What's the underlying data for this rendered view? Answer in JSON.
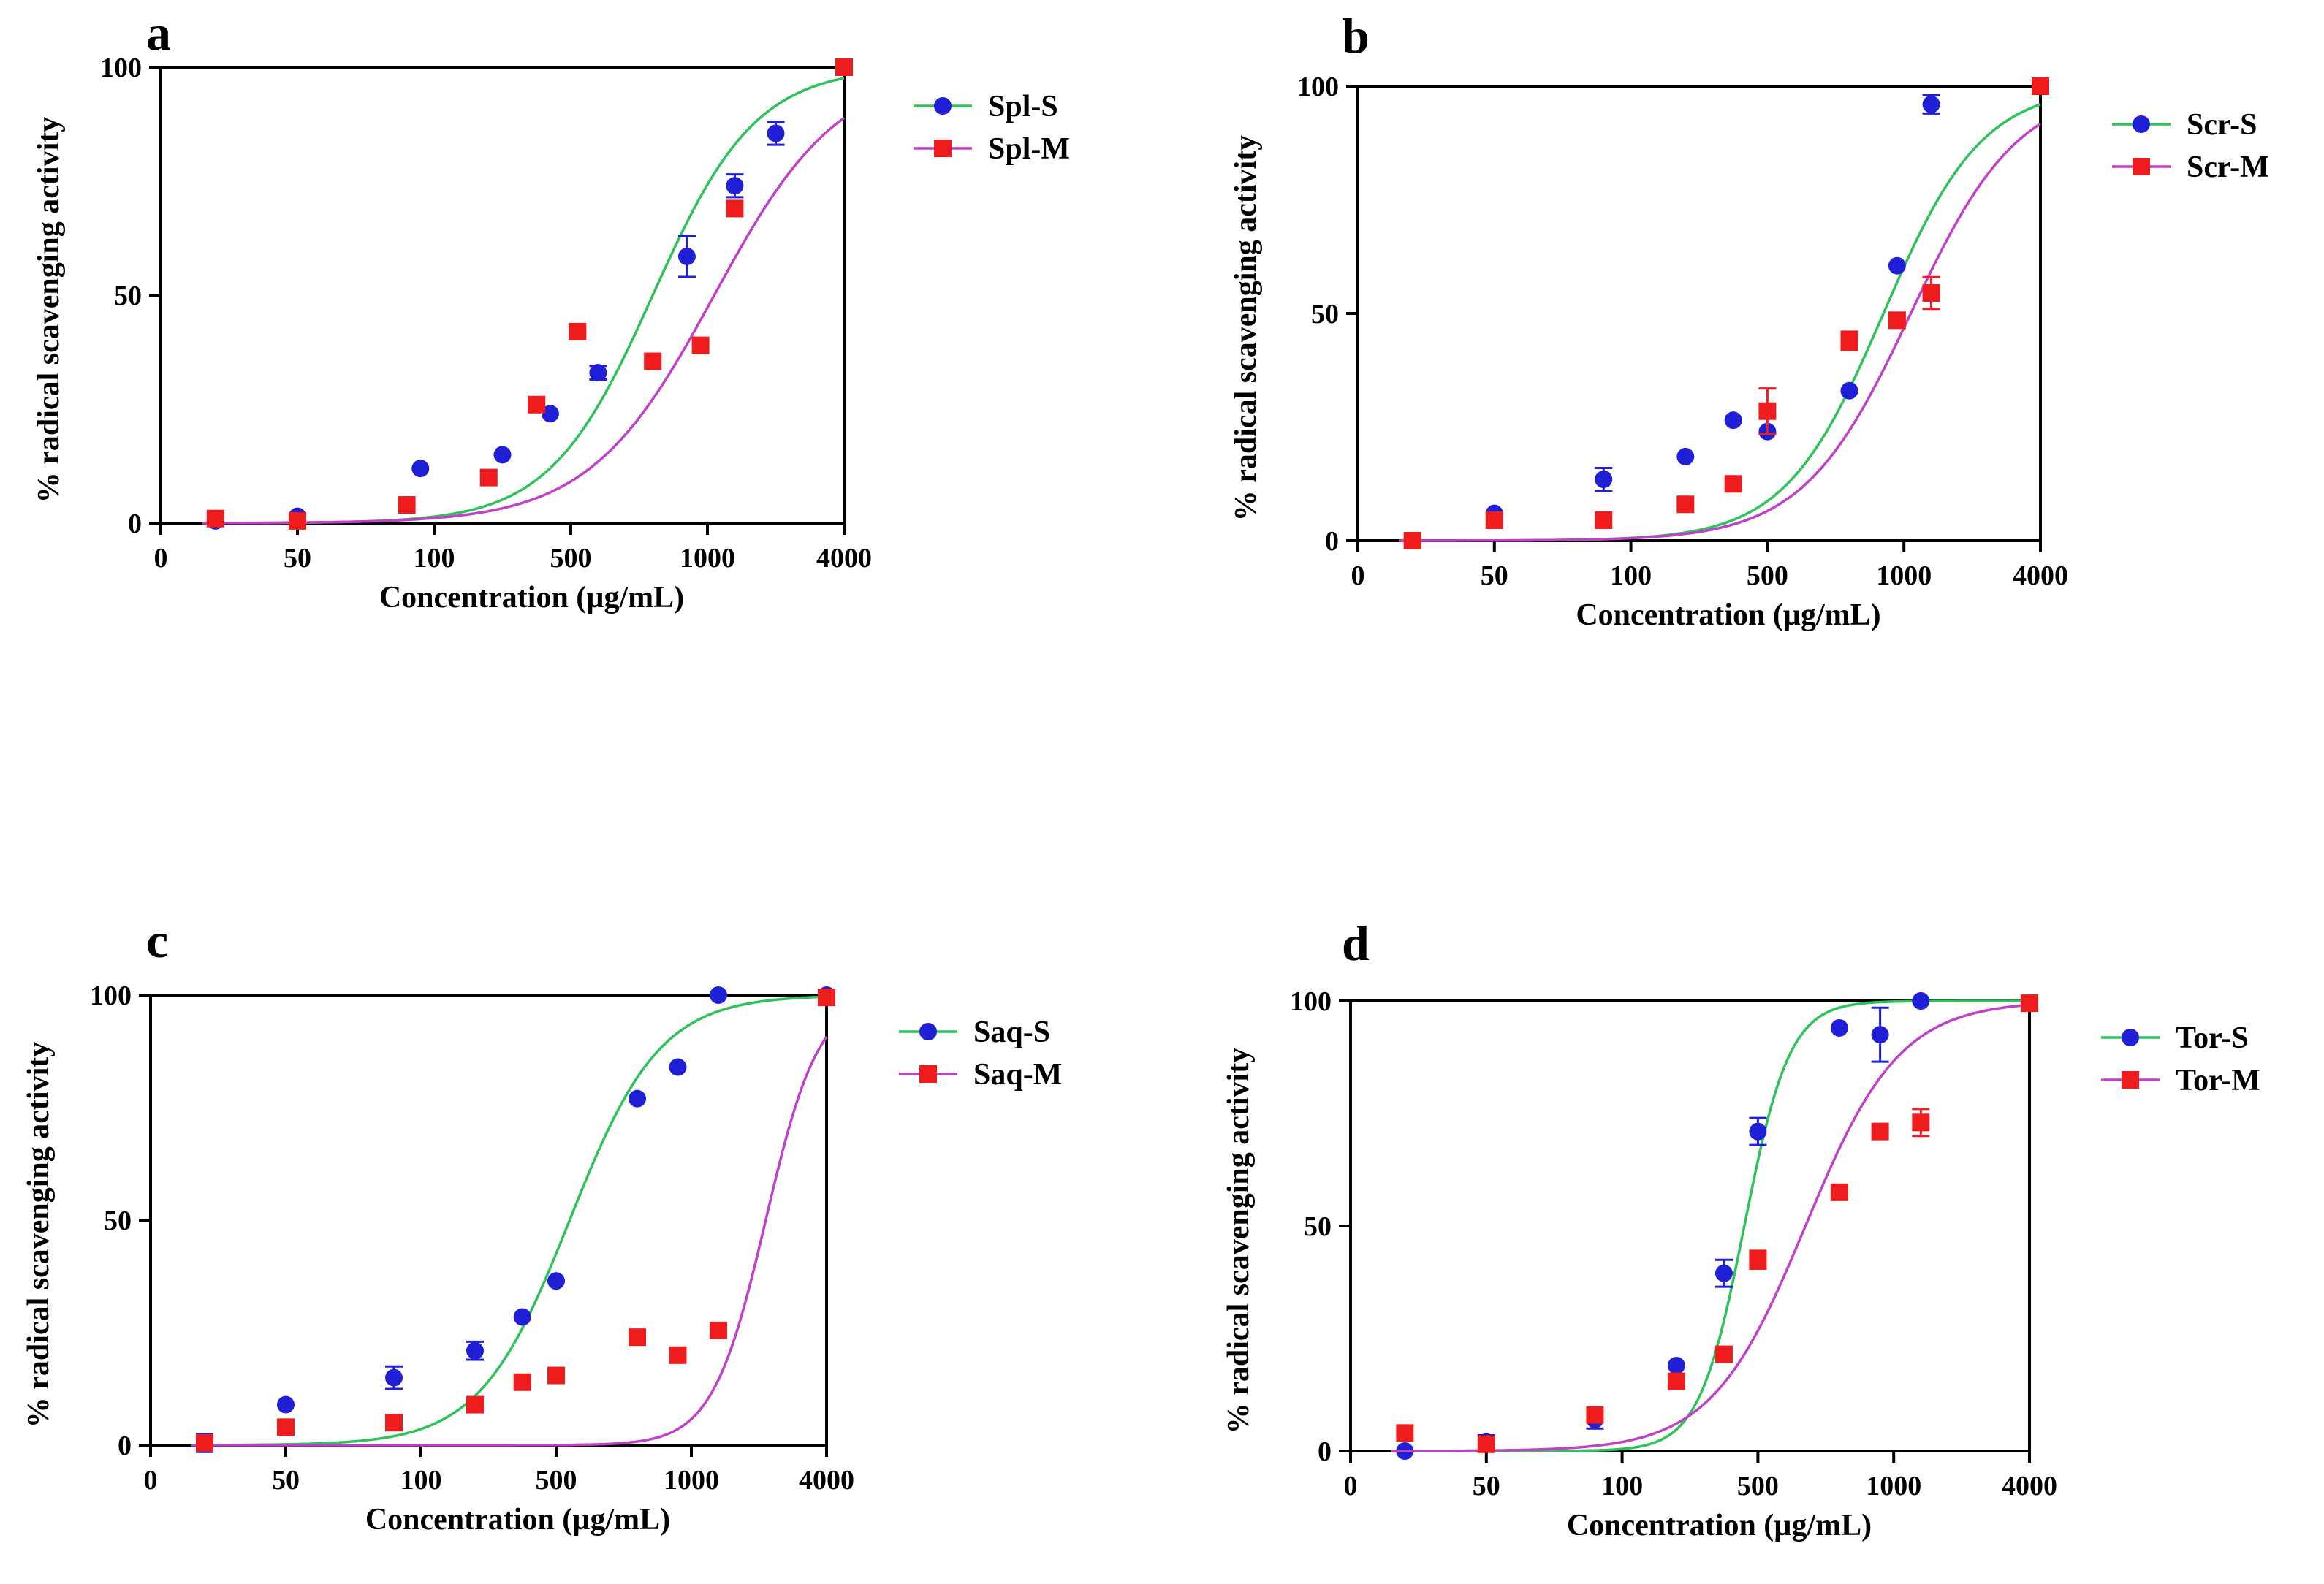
{
  "chart_data": [
    {
      "type": "scatter",
      "panel": "a",
      "xlabel": "Concentration (µg/mL)",
      "ylabel": "% radical scavenging activity",
      "x_ticks": [
        "0",
        "50",
        "100",
        "500",
        "1000",
        "4000"
      ],
      "y_ticks": [
        "0",
        "50",
        "100"
      ],
      "ylim": [
        0,
        100
      ],
      "legend_position": "top-right",
      "series": [
        {
          "name": "Spl-S",
          "color": "#1f1fd6",
          "marker": "circle",
          "fit_color": "#2ec25a",
          "fit": {
            "bottom": 0,
            "top": 100,
            "mid": 3.6,
            "hill": 1.15
          },
          "points": [
            [
              0.4,
              0.5
            ],
            [
              1,
              1.5
            ],
            [
              1.9,
              12
            ],
            [
              2.5,
              15
            ],
            [
              2.85,
              24
            ],
            [
              3.2,
              33
            ],
            [
              3.85,
              58.5
            ],
            [
              4.2,
              74
            ],
            [
              4.5,
              85.5
            ],
            [
              5,
              100
            ]
          ],
          "errors": [
            0,
            0,
            0,
            0,
            0,
            1.5,
            4.5,
            2.5,
            2.5,
            0
          ]
        },
        {
          "name": "Spl-M",
          "color": "#ee1c1c",
          "marker": "square",
          "fit_color": "#c040c8",
          "fit": {
            "bottom": 0,
            "top": 100,
            "mid": 4.05,
            "hill": 0.95
          },
          "points": [
            [
              0.4,
              1
            ],
            [
              1,
              0.5
            ],
            [
              1.8,
              4
            ],
            [
              2.4,
              10
            ],
            [
              2.75,
              26
            ],
            [
              3.05,
              42
            ],
            [
              3.6,
              35.5
            ],
            [
              3.95,
              39
            ],
            [
              4.2,
              69
            ],
            [
              5,
              100
            ]
          ],
          "errors": [
            0,
            0,
            0,
            0,
            0,
            0,
            0,
            0,
            0,
            0
          ]
        }
      ]
    },
    {
      "type": "scatter",
      "panel": "b",
      "xlabel": "Concentration (µg/mL)",
      "ylabel": "% radical scavenging activity",
      "x_ticks": [
        "0",
        "50",
        "100",
        "500",
        "1000",
        "4000"
      ],
      "y_ticks": [
        "0",
        "50",
        "100"
      ],
      "ylim": [
        0,
        100
      ],
      "legend_position": "top-right",
      "series": [
        {
          "name": "Scr-S",
          "color": "#1f1fd6",
          "marker": "circle",
          "fit_color": "#2ec25a",
          "fit": {
            "bottom": 0,
            "top": 100,
            "mid": 3.85,
            "hill": 1.2
          },
          "points": [
            [
              0.4,
              0
            ],
            [
              1,
              6
            ],
            [
              1.8,
              13.5
            ],
            [
              2.4,
              18.5
            ],
            [
              2.75,
              26.5
            ],
            [
              3.0,
              24
            ],
            [
              3.6,
              33
            ],
            [
              3.95,
              60.5
            ],
            [
              4.2,
              96
            ],
            [
              5,
              100
            ]
          ],
          "errors": [
            0,
            0,
            2.5,
            0,
            0,
            0,
            0,
            0,
            2,
            0
          ]
        },
        {
          "name": "Scr-M",
          "color": "#ee1c1c",
          "marker": "square",
          "fit_color": "#c040c8",
          "fit": {
            "bottom": 0,
            "top": 100,
            "mid": 4.05,
            "hill": 1.1
          },
          "points": [
            [
              0.4,
              0
            ],
            [
              1,
              4.5
            ],
            [
              1.8,
              4.5
            ],
            [
              2.4,
              8
            ],
            [
              2.75,
              12.5
            ],
            [
              3.0,
              28.5
            ],
            [
              3.6,
              44
            ],
            [
              3.95,
              48.5
            ],
            [
              4.2,
              54.5
            ],
            [
              5,
              100
            ]
          ],
          "errors": [
            0,
            0,
            0,
            0,
            0,
            5,
            2,
            0,
            3.5,
            0
          ]
        }
      ]
    },
    {
      "type": "scatter",
      "panel": "c",
      "xlabel": "Concentration (µg/mL)",
      "ylabel": "% radical scavenging activity",
      "x_ticks": [
        "0",
        "50",
        "100",
        "500",
        "1000",
        "4000"
      ],
      "y_ticks": [
        "0",
        "50",
        "100"
      ],
      "ylim": [
        0,
        100
      ],
      "legend_position": "top-right",
      "series": [
        {
          "name": "Saq-S",
          "color": "#1f1fd6",
          "marker": "circle",
          "fit_color": "#2ec25a",
          "fit": {
            "bottom": 0,
            "top": 100,
            "mid": 3.1,
            "hill": 1.3
          },
          "points": [
            [
              0.4,
              0.5
            ],
            [
              1,
              9
            ],
            [
              1.8,
              15
            ],
            [
              2.4,
              21
            ],
            [
              2.75,
              28.5
            ],
            [
              3.0,
              36.5
            ],
            [
              3.6,
              77
            ],
            [
              3.9,
              84
            ],
            [
              4.2,
              100
            ],
            [
              5,
              100
            ]
          ],
          "errors": [
            2,
            0,
            2.5,
            2,
            0,
            0,
            0,
            0,
            0,
            0
          ]
        },
        {
          "name": "Saq-M",
          "color": "#ee1c1c",
          "marker": "square",
          "fit_color": "#c040c8",
          "fit": {
            "bottom": 0,
            "top": 100,
            "mid": 4.55,
            "hill": 2.2
          },
          "points": [
            [
              0.4,
              0.5
            ],
            [
              1,
              4
            ],
            [
              1.8,
              5
            ],
            [
              2.4,
              9
            ],
            [
              2.75,
              14
            ],
            [
              3.0,
              15.5
            ],
            [
              3.6,
              24
            ],
            [
              3.9,
              20
            ],
            [
              4.2,
              25.5
            ],
            [
              5,
              99.5
            ]
          ],
          "errors": [
            0,
            0,
            0,
            0,
            0,
            0,
            0,
            0,
            0,
            0
          ]
        }
      ]
    },
    {
      "type": "scatter",
      "panel": "d",
      "xlabel": "Concentration (µg/mL)",
      "ylabel": "% radical scavenging activity",
      "x_ticks": [
        "0",
        "50",
        "100",
        "500",
        "1000",
        "4000"
      ],
      "y_ticks": [
        "0",
        "50",
        "100"
      ],
      "ylim": [
        0,
        100
      ],
      "legend_position": "top-right",
      "series": [
        {
          "name": "Tor-S",
          "color": "#1f1fd6",
          "marker": "circle",
          "fit_color": "#2ec25a",
          "fit": {
            "bottom": 0,
            "top": 100,
            "mid": 2.9,
            "hill": 2.6
          },
          "points": [
            [
              0.4,
              0
            ],
            [
              1,
              2
            ],
            [
              1.8,
              7
            ],
            [
              2.4,
              19
            ],
            [
              2.75,
              39.5
            ],
            [
              3.0,
              71
            ],
            [
              3.6,
              94
            ],
            [
              3.9,
              92.5
            ],
            [
              4.2,
              100
            ],
            [
              5,
              99.5
            ]
          ],
          "errors": [
            0,
            1.5,
            2,
            0,
            3,
            3,
            0,
            6,
            0,
            0
          ]
        },
        {
          "name": "Tor-M",
          "color": "#ee1c1c",
          "marker": "square",
          "fit_color": "#c040c8",
          "fit": {
            "bottom": 0,
            "top": 100,
            "mid": 3.35,
            "hill": 1.25
          },
          "points": [
            [
              0.4,
              4
            ],
            [
              1,
              1.5
            ],
            [
              1.8,
              8
            ],
            [
              2.4,
              15.5
            ],
            [
              2.75,
              21.5
            ],
            [
              3.0,
              42.5
            ],
            [
              3.6,
              57.5
            ],
            [
              3.9,
              71
            ],
            [
              4.2,
              73
            ],
            [
              5,
              99.5
            ]
          ],
          "errors": [
            0,
            0,
            0,
            0,
            0,
            2,
            1.5,
            0,
            3,
            0
          ]
        }
      ]
    }
  ]
}
